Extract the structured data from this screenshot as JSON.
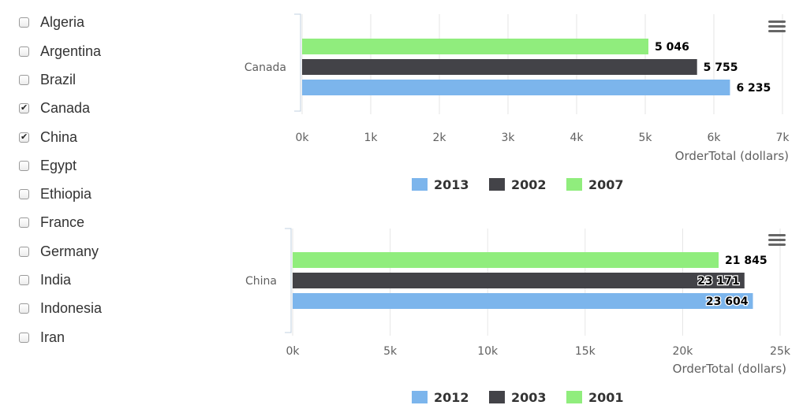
{
  "countries": [
    {
      "name": "Algeria",
      "checked": false
    },
    {
      "name": "Argentina",
      "checked": false
    },
    {
      "name": "Brazil",
      "checked": false
    },
    {
      "name": "Canada",
      "checked": true
    },
    {
      "name": "China",
      "checked": true
    },
    {
      "name": "Egypt",
      "checked": false
    },
    {
      "name": "Ethiopia",
      "checked": false
    },
    {
      "name": "France",
      "checked": false
    },
    {
      "name": "Germany",
      "checked": false
    },
    {
      "name": "India",
      "checked": false
    },
    {
      "name": "Indonesia",
      "checked": false
    },
    {
      "name": "Iran",
      "checked": false
    }
  ],
  "menu_icon": "hamburger-menu-icon",
  "chart_data": [
    {
      "type": "bar",
      "orientation": "horizontal",
      "categories": [
        "Canada"
      ],
      "xlabel": "OrderTotal (dollars)",
      "xlim": [
        0,
        7000
      ],
      "ticks": [
        "0k",
        "1k",
        "2k",
        "3k",
        "4k",
        "5k",
        "6k",
        "7k"
      ],
      "grid": true,
      "legend_placement": "bottom-center",
      "series": [
        {
          "name": "2013",
          "values": [
            6235
          ],
          "label": "6 235",
          "color": "#7cb5ec"
        },
        {
          "name": "2002",
          "values": [
            5755
          ],
          "label": "5 755",
          "color": "#434348"
        },
        {
          "name": "2007",
          "values": [
            5046
          ],
          "label": "5 046",
          "color": "#90ed7d"
        }
      ]
    },
    {
      "type": "bar",
      "orientation": "horizontal",
      "categories": [
        "China"
      ],
      "xlabel": "OrderTotal (dollars)",
      "xlim": [
        0,
        25000
      ],
      "ticks": [
        "0k",
        "5k",
        "10k",
        "15k",
        "20k",
        "25k"
      ],
      "grid": true,
      "legend_placement": "bottom-center",
      "series": [
        {
          "name": "2012",
          "values": [
            23604
          ],
          "label": "23 604",
          "color": "#7cb5ec"
        },
        {
          "name": "2003",
          "values": [
            23171
          ],
          "label": "23 171",
          "color": "#434348"
        },
        {
          "name": "2001",
          "values": [
            21845
          ],
          "label": "21 845",
          "color": "#90ed7d"
        }
      ]
    }
  ]
}
